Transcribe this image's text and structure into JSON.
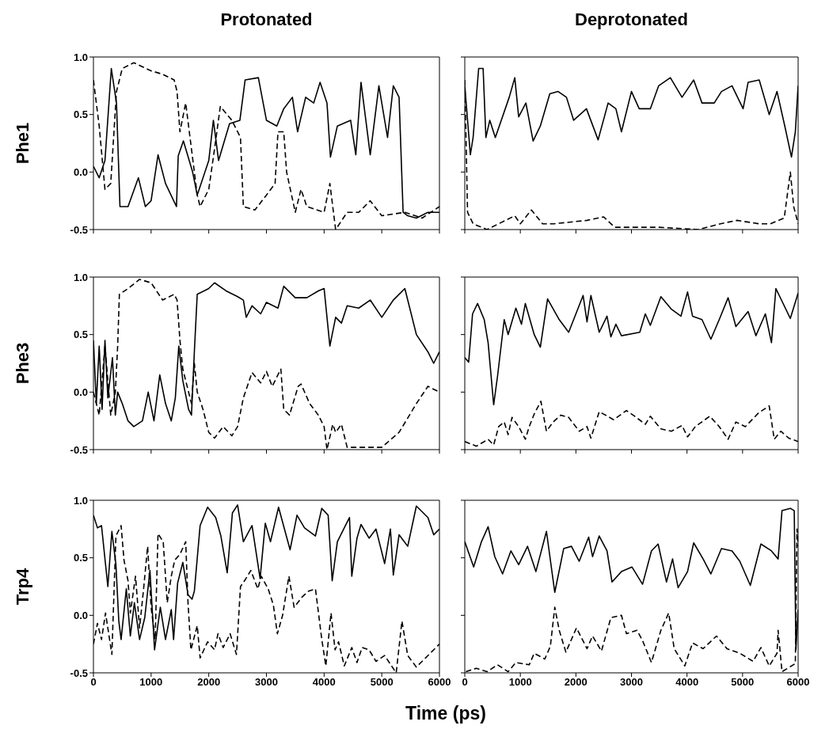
{
  "chart_data": [
    {
      "type": "line",
      "title": "Protonated",
      "ylabel": "Phe1",
      "xlim": [
        0,
        6000
      ],
      "ylim": [
        -0.5,
        1.0
      ],
      "xticks": [
        0,
        1000,
        2000,
        3000,
        4000,
        5000,
        6000
      ],
      "yticks": [
        {
          "value": -0.5,
          "label": "-0.5"
        },
        {
          "value": 0,
          "label": "0.0"
        },
        {
          "value": 0.5,
          "label": "0.5"
        },
        {
          "value": 1,
          "label": "1.0"
        }
      ],
      "tick_labels": "y",
      "series": [
        {
          "color": "#000000",
          "line_style": "solid",
          "x": [
            0,
            100,
            200,
            310,
            400,
            460,
            600,
            780,
            900,
            1000,
            1120,
            1250,
            1440,
            1470,
            1560,
            1720,
            1800,
            2000,
            2080,
            2170,
            2360,
            2540,
            2630,
            2860,
            3000,
            3180,
            3300,
            3450,
            3540,
            3680,
            3820,
            3930,
            4050,
            4110,
            4230,
            4460,
            4550,
            4640,
            4800,
            4950,
            5100,
            5200,
            5300,
            5370,
            5450,
            5600,
            5800,
            6000
          ],
          "values": [
            0.05,
            -0.05,
            0.1,
            0.9,
            0.6,
            -0.3,
            -0.3,
            -0.05,
            -0.3,
            -0.25,
            0.15,
            -0.1,
            -0.3,
            0.14,
            0.27,
            0.0,
            -0.2,
            0.1,
            0.45,
            0.1,
            0.42,
            0.45,
            0.8,
            0.82,
            0.45,
            0.4,
            0.55,
            0.65,
            0.35,
            0.65,
            0.6,
            0.78,
            0.6,
            0.13,
            0.4,
            0.45,
            0.15,
            0.78,
            0.15,
            0.75,
            0.3,
            0.75,
            0.65,
            -0.35,
            -0.38,
            -0.4,
            -0.35,
            -0.35
          ]
        },
        {
          "color": "#000000",
          "line_style": "dashed",
          "x": [
            0,
            100,
            200,
            300,
            400,
            500,
            700,
            1000,
            1200,
            1400,
            1450,
            1500,
            1600,
            1700,
            1800,
            1850,
            2000,
            2100,
            2200,
            2400,
            2500,
            2550,
            2600,
            2800,
            3000,
            3150,
            3200,
            3300,
            3350,
            3500,
            3600,
            3700,
            4000,
            4100,
            4200,
            4400,
            4600,
            4800,
            5000,
            5400,
            5700,
            6000
          ],
          "values": [
            0.8,
            0.4,
            -0.15,
            -0.1,
            0.7,
            0.9,
            0.95,
            0.88,
            0.85,
            0.8,
            0.7,
            0.35,
            0.6,
            0.2,
            -0.2,
            -0.3,
            -0.15,
            0.2,
            0.57,
            0.45,
            0.35,
            0.3,
            -0.3,
            -0.33,
            -0.2,
            -0.1,
            0.35,
            0.35,
            0.0,
            -0.35,
            -0.15,
            -0.3,
            -0.35,
            -0.1,
            -0.5,
            -0.35,
            -0.35,
            -0.25,
            -0.38,
            -0.35,
            -0.4,
            -0.3
          ]
        }
      ]
    },
    {
      "type": "line",
      "title": "Deprotonated",
      "xlim": [
        0,
        6000
      ],
      "ylim": [
        -0.5,
        1.0
      ],
      "xticks": [
        0,
        1000,
        2000,
        3000,
        4000,
        5000,
        6000
      ],
      "yticks": [
        {
          "value": -0.5,
          "label": null
        },
        {
          "value": 0,
          "label": null
        },
        {
          "value": 0.5,
          "label": null
        },
        {
          "value": 1,
          "label": null
        }
      ],
      "tick_labels": false,
      "series": [
        {
          "color": "#000000",
          "line_style": "solid",
          "x": [
            0,
            100,
            150,
            250,
            330,
            380,
            450,
            550,
            800,
            900,
            970,
            1100,
            1230,
            1360,
            1530,
            1680,
            1830,
            1960,
            2190,
            2400,
            2580,
            2720,
            2820,
            3000,
            3140,
            3340,
            3490,
            3700,
            3910,
            4120,
            4270,
            4490,
            4620,
            4810,
            5010,
            5100,
            5300,
            5480,
            5620,
            5760,
            5880,
            5950,
            6000
          ],
          "values": [
            0.75,
            0.15,
            0.3,
            0.9,
            0.9,
            0.3,
            0.45,
            0.3,
            0.65,
            0.82,
            0.48,
            0.6,
            0.27,
            0.4,
            0.68,
            0.7,
            0.65,
            0.45,
            0.55,
            0.28,
            0.6,
            0.55,
            0.35,
            0.7,
            0.55,
            0.55,
            0.75,
            0.82,
            0.65,
            0.8,
            0.6,
            0.6,
            0.7,
            0.75,
            0.55,
            0.78,
            0.8,
            0.5,
            0.7,
            0.4,
            0.13,
            0.35,
            0.75
          ]
        },
        {
          "color": "#000000",
          "line_style": "dashed",
          "x": [
            0,
            50,
            150,
            400,
            900,
            1000,
            1200,
            1400,
            1600,
            2200,
            2500,
            2700,
            3500,
            4200,
            4600,
            4900,
            5300,
            5500,
            5750,
            5860,
            5920,
            6000
          ],
          "values": [
            0.8,
            -0.35,
            -0.45,
            -0.5,
            -0.38,
            -0.45,
            -0.33,
            -0.45,
            -0.45,
            -0.42,
            -0.39,
            -0.48,
            -0.48,
            -0.5,
            -0.45,
            -0.42,
            -0.45,
            -0.45,
            -0.4,
            0.0,
            -0.3,
            -0.45
          ]
        }
      ]
    },
    {
      "type": "line",
      "ylabel": "Phe3",
      "xlim": [
        0,
        6000
      ],
      "ylim": [
        -0.5,
        1.0
      ],
      "xticks": [
        0,
        1000,
        2000,
        3000,
        4000,
        5000,
        6000
      ],
      "yticks": [
        {
          "value": -0.5,
          "label": "-0.5"
        },
        {
          "value": 0,
          "label": "0.0"
        },
        {
          "value": 0.5,
          "label": "0.5"
        },
        {
          "value": 1,
          "label": "1.0"
        }
      ],
      "tick_labels": "y",
      "series": [
        {
          "color": "#000000",
          "line_style": "solid",
          "x": [
            0,
            50,
            100,
            150,
            200,
            250,
            330,
            380,
            420,
            500,
            600,
            700,
            850,
            950,
            1050,
            1150,
            1250,
            1350,
            1420,
            1480,
            1550,
            1650,
            1700,
            1750,
            1800,
            2000,
            2100,
            2300,
            2500,
            2600,
            2650,
            2750,
            2900,
            3000,
            3200,
            3300,
            3500,
            3700,
            3900,
            4000,
            4100,
            4200,
            4300,
            4400,
            4600,
            4800,
            5000,
            5200,
            5400,
            5600,
            5800,
            5900,
            6000
          ],
          "values": [
            0.45,
            -0.1,
            0.4,
            -0.15,
            0.45,
            -0.05,
            0.3,
            -0.2,
            0.0,
            -0.1,
            -0.25,
            -0.3,
            -0.25,
            0.0,
            -0.25,
            0.15,
            -0.1,
            -0.25,
            -0.05,
            0.4,
            0.1,
            -0.15,
            -0.2,
            0.35,
            0.85,
            0.9,
            0.95,
            0.88,
            0.83,
            0.8,
            0.65,
            0.75,
            0.68,
            0.78,
            0.73,
            0.92,
            0.82,
            0.82,
            0.88,
            0.9,
            0.4,
            0.65,
            0.6,
            0.75,
            0.73,
            0.8,
            0.65,
            0.8,
            0.9,
            0.5,
            0.35,
            0.25,
            0.35
          ]
        },
        {
          "color": "#000000",
          "line_style": "dashed",
          "x": [
            0,
            100,
            200,
            300,
            380,
            420,
            450,
            600,
            800,
            1000,
            1200,
            1400,
            1450,
            1500,
            1550,
            1700,
            1750,
            1800,
            1900,
            2000,
            2100,
            2250,
            2400,
            2500,
            2600,
            2750,
            2900,
            3000,
            3100,
            3250,
            3300,
            3400,
            3550,
            3600,
            3750,
            3900,
            4000,
            4050,
            4150,
            4200,
            4300,
            4400,
            4800,
            5000,
            5300,
            5600,
            5800,
            6000
          ],
          "values": [
            0.0,
            -0.2,
            0.4,
            -0.2,
            0.0,
            0.4,
            0.85,
            0.9,
            0.98,
            0.95,
            0.8,
            0.85,
            0.8,
            0.45,
            0.2,
            -0.1,
            0.25,
            0.0,
            -0.15,
            -0.35,
            -0.4,
            -0.3,
            -0.38,
            -0.3,
            -0.05,
            0.17,
            0.08,
            0.18,
            0.05,
            0.2,
            -0.15,
            -0.2,
            0.05,
            0.07,
            -0.1,
            -0.2,
            -0.3,
            -0.5,
            -0.28,
            -0.35,
            -0.28,
            -0.48,
            -0.48,
            -0.48,
            -0.35,
            -0.1,
            0.05,
            0.0
          ]
        }
      ]
    },
    {
      "type": "line",
      "xlim": [
        0,
        6000
      ],
      "ylim": [
        -0.5,
        1.0
      ],
      "xticks": [
        0,
        1000,
        2000,
        3000,
        4000,
        5000,
        6000
      ],
      "yticks": [
        {
          "value": -0.5,
          "label": null
        },
        {
          "value": 0,
          "label": null
        },
        {
          "value": 0.5,
          "label": null
        },
        {
          "value": 1,
          "label": null
        }
      ],
      "tick_labels": false,
      "series": [
        {
          "color": "#000000",
          "line_style": "solid",
          "x": [
            0,
            70,
            140,
            230,
            350,
            420,
            520,
            590,
            710,
            780,
            920,
            1020,
            1090,
            1250,
            1360,
            1490,
            1700,
            1870,
            2130,
            2200,
            2270,
            2420,
            2560,
            2630,
            2720,
            2820,
            3150,
            3250,
            3340,
            3530,
            3720,
            3890,
            4010,
            4100,
            4270,
            4430,
            4580,
            4740,
            4880,
            5100,
            5240,
            5410,
            5520,
            5600,
            5710,
            5860,
            6000
          ],
          "values": [
            0.3,
            0.26,
            0.68,
            0.77,
            0.63,
            0.43,
            -0.11,
            0.14,
            0.63,
            0.5,
            0.73,
            0.59,
            0.77,
            0.5,
            0.39,
            0.81,
            0.63,
            0.52,
            0.84,
            0.61,
            0.84,
            0.52,
            0.66,
            0.48,
            0.59,
            0.49,
            0.52,
            0.68,
            0.58,
            0.83,
            0.72,
            0.66,
            0.87,
            0.66,
            0.63,
            0.46,
            0.63,
            0.82,
            0.57,
            0.7,
            0.49,
            0.68,
            0.43,
            0.9,
            0.79,
            0.64,
            0.86
          ]
        },
        {
          "color": "#000000",
          "line_style": "dashed",
          "x": [
            0,
            210,
            420,
            520,
            610,
            710,
            780,
            850,
            970,
            1090,
            1160,
            1250,
            1370,
            1470,
            1590,
            1730,
            1870,
            2060,
            2200,
            2270,
            2420,
            2680,
            2910,
            3060,
            3250,
            3340,
            3530,
            3720,
            3910,
            4010,
            4150,
            4410,
            4580,
            4740,
            4880,
            5050,
            5290,
            5480,
            5570,
            5690,
            5830,
            6000
          ],
          "values": [
            -0.43,
            -0.47,
            -0.41,
            -0.46,
            -0.3,
            -0.26,
            -0.37,
            -0.22,
            -0.3,
            -0.41,
            -0.3,
            -0.19,
            -0.08,
            -0.34,
            -0.26,
            -0.2,
            -0.22,
            -0.34,
            -0.3,
            -0.4,
            -0.17,
            -0.24,
            -0.16,
            -0.21,
            -0.28,
            -0.21,
            -0.32,
            -0.34,
            -0.29,
            -0.39,
            -0.3,
            -0.21,
            -0.3,
            -0.41,
            -0.26,
            -0.3,
            -0.18,
            -0.12,
            -0.41,
            -0.34,
            -0.4,
            -0.43
          ]
        }
      ]
    },
    {
      "type": "line",
      "ylabel": "Trp4",
      "xlabel": "Time (ps)",
      "xlim": [
        0,
        6000
      ],
      "ylim": [
        -0.5,
        1.0
      ],
      "xticks": [
        0,
        1000,
        2000,
        3000,
        4000,
        5000,
        6000
      ],
      "yticks": [
        {
          "value": -0.5,
          "label": "-0.5"
        },
        {
          "value": 0,
          "label": "0.0"
        },
        {
          "value": 0.5,
          "label": "0.5"
        },
        {
          "value": 1,
          "label": "1.0"
        }
      ],
      "series": [
        {
          "color": "#000000",
          "line_style": "solid",
          "x": [
            0,
            70,
            140,
            250,
            320,
            390,
            440,
            480,
            570,
            640,
            710,
            800,
            890,
            980,
            1060,
            1160,
            1250,
            1350,
            1390,
            1460,
            1550,
            1640,
            1710,
            1750,
            1850,
            1980,
            2120,
            2210,
            2320,
            2410,
            2500,
            2600,
            2750,
            2890,
            2980,
            3070,
            3210,
            3410,
            3530,
            3660,
            3850,
            3960,
            4070,
            4140,
            4230,
            4370,
            4440,
            4480,
            4570,
            4640,
            4780,
            4900,
            5050,
            5150,
            5200,
            5300,
            5450,
            5600,
            5800,
            5900,
            6000
          ],
          "values": [
            0.87,
            0.76,
            0.78,
            0.25,
            0.73,
            0.44,
            -0.05,
            -0.21,
            0.23,
            -0.18,
            0.11,
            -0.21,
            -0.02,
            0.39,
            -0.3,
            0.07,
            -0.21,
            0.05,
            -0.21,
            0.28,
            0.46,
            0.18,
            0.14,
            0.21,
            0.78,
            0.94,
            0.85,
            0.69,
            0.37,
            0.89,
            0.96,
            0.64,
            0.78,
            0.32,
            0.8,
            0.64,
            0.94,
            0.57,
            0.87,
            0.76,
            0.69,
            0.93,
            0.87,
            0.3,
            0.64,
            0.78,
            0.85,
            0.34,
            0.67,
            0.79,
            0.67,
            0.75,
            0.45,
            0.75,
            0.35,
            0.7,
            0.6,
            0.95,
            0.85,
            0.7,
            0.75
          ]
        },
        {
          "color": "#000000",
          "line_style": "dashed",
          "x": [
            0,
            70,
            140,
            210,
            320,
            390,
            480,
            530,
            600,
            640,
            730,
            800,
            870,
            940,
            1000,
            1070,
            1120,
            1210,
            1280,
            1350,
            1410,
            1500,
            1600,
            1640,
            1690,
            1800,
            1850,
            1980,
            2100,
            2160,
            2250,
            2370,
            2480,
            2550,
            2620,
            2730,
            2850,
            2910,
            3030,
            3120,
            3190,
            3280,
            3390,
            3480,
            3620,
            3730,
            3850,
            3890,
            3960,
            4030,
            4120,
            4190,
            4250,
            4350,
            4480,
            4570,
            4660,
            4780,
            4900,
            5050,
            5250,
            5350,
            5450,
            5600,
            5800,
            6000
          ],
          "values": [
            -0.25,
            -0.07,
            -0.21,
            0.02,
            -0.34,
            0.69,
            0.78,
            0.48,
            0.3,
            0.02,
            0.34,
            -0.11,
            0.23,
            0.6,
            0.07,
            -0.21,
            0.71,
            0.64,
            0.11,
            0.34,
            0.48,
            0.53,
            0.64,
            0.11,
            -0.3,
            -0.09,
            -0.37,
            -0.23,
            -0.3,
            -0.16,
            -0.28,
            -0.16,
            -0.34,
            0.25,
            0.3,
            0.39,
            0.23,
            0.34,
            0.23,
            0.09,
            -0.16,
            0.0,
            0.34,
            0.07,
            0.16,
            0.21,
            0.23,
            0.07,
            -0.21,
            -0.44,
            0.02,
            -0.3,
            -0.23,
            -0.44,
            -0.28,
            -0.41,
            -0.28,
            -0.3,
            -0.4,
            -0.35,
            -0.5,
            -0.05,
            -0.35,
            -0.45,
            -0.35,
            -0.25
          ]
        }
      ]
    },
    {
      "type": "line",
      "xlim": [
        0,
        6000
      ],
      "ylim": [
        -0.5,
        1.0
      ],
      "xticks": [
        0,
        1000,
        2000,
        3000,
        4000,
        5000,
        6000
      ],
      "yticks": [
        {
          "value": -0.5,
          "label": null
        },
        {
          "value": 0,
          "label": null
        },
        {
          "value": 0.5,
          "label": null
        },
        {
          "value": 1,
          "label": null
        }
      ],
      "tick_labels": "x",
      "series": [
        {
          "color": "#000000",
          "line_style": "solid",
          "x": [
            0,
            160,
            300,
            420,
            540,
            680,
            830,
            970,
            1130,
            1280,
            1470,
            1620,
            1780,
            1920,
            2060,
            2230,
            2300,
            2420,
            2560,
            2650,
            2820,
            3010,
            3200,
            3360,
            3480,
            3630,
            3740,
            3840,
            4010,
            4120,
            4290,
            4430,
            4620,
            4810,
            4950,
            5140,
            5330,
            5520,
            5640,
            5710,
            5860,
            5930,
            5960,
            6000
          ],
          "values": [
            0.64,
            0.42,
            0.64,
            0.77,
            0.51,
            0.36,
            0.56,
            0.44,
            0.6,
            0.38,
            0.73,
            0.2,
            0.58,
            0.6,
            0.47,
            0.68,
            0.51,
            0.69,
            0.56,
            0.29,
            0.38,
            0.42,
            0.27,
            0.56,
            0.62,
            0.29,
            0.49,
            0.24,
            0.38,
            0.63,
            0.49,
            0.36,
            0.58,
            0.56,
            0.47,
            0.26,
            0.62,
            0.56,
            0.49,
            0.91,
            0.93,
            0.91,
            -0.3,
            0.05
          ]
        },
        {
          "color": "#000000",
          "line_style": "dashed",
          "x": [
            20,
            210,
            400,
            590,
            780,
            920,
            1160,
            1250,
            1440,
            1540,
            1620,
            1700,
            1820,
            2010,
            2200,
            2300,
            2460,
            2630,
            2820,
            2910,
            3100,
            3200,
            3360,
            3530,
            3670,
            3770,
            3960,
            4100,
            4290,
            4530,
            4720,
            4950,
            5190,
            5330,
            5480,
            5620,
            5640,
            5710,
            5950,
            5980,
            6000
          ],
          "values": [
            -0.49,
            -0.46,
            -0.49,
            -0.43,
            -0.49,
            -0.41,
            -0.43,
            -0.33,
            -0.38,
            -0.27,
            0.07,
            -0.13,
            -0.32,
            -0.11,
            -0.29,
            -0.18,
            -0.31,
            -0.02,
            0.0,
            -0.16,
            -0.13,
            -0.22,
            -0.41,
            -0.13,
            0.02,
            -0.29,
            -0.44,
            -0.24,
            -0.29,
            -0.18,
            -0.29,
            -0.33,
            -0.4,
            -0.28,
            -0.44,
            -0.33,
            -0.13,
            -0.49,
            -0.42,
            0.75,
            0.6
          ]
        }
      ]
    }
  ]
}
